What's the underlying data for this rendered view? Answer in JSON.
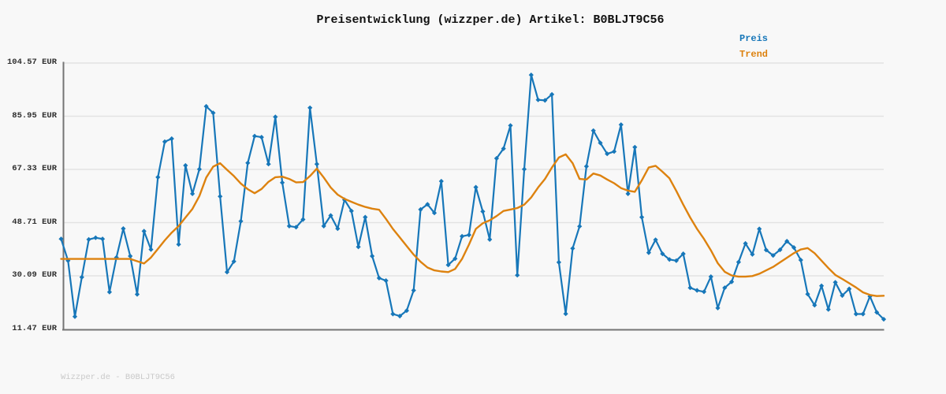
{
  "header": {
    "title": "Preisentwicklung (wizzper.de) Artikel: B0BLJT9C56"
  },
  "legend": {
    "items": [
      {
        "label": "Preis",
        "color": "#1777b9"
      },
      {
        "label": "Trend",
        "color": "#dd820f"
      }
    ]
  },
  "footer": {
    "text": "Wizzper.de - B0BLJT9C56"
  },
  "colors": {
    "background": "#f8f8f8",
    "grid": "#e3e3e3",
    "spine": "#757575",
    "preis_line": "#1777b9",
    "trend_line": "#dd820f",
    "title_text": "#111111",
    "tick_text": "#2e2e2e",
    "watermark_text": "#c9c9c9"
  },
  "chart_data": {
    "type": "line",
    "title": "Preisentwicklung (wizzper.de) Artikel: B0BLJT9C56",
    "unit": "EUR",
    "grid": true,
    "legend_position": "top-right",
    "x_axis": {
      "labels_visible": false,
      "point_count": 120
    },
    "y_ticks": [
      104.57,
      85.95,
      67.33,
      48.71,
      30.09,
      11.47
    ],
    "y_tick_labels": [
      "104.57 EUR",
      "85.95 EUR",
      "67.33 EUR",
      "48.71 EUR",
      "30.09 EUR",
      "11.47 EUR"
    ],
    "ylim": [
      11.47,
      104.57
    ],
    "series": [
      {
        "name": "Preis",
        "color": "#1777b9",
        "marker": "diamond",
        "values": [
          43.0,
          35.4,
          15.8,
          29.6,
          42.8,
          43.4,
          43.0,
          24.4,
          36.5,
          46.6,
          37.0,
          23.6,
          45.7,
          39.3,
          64.6,
          77.0,
          78.1,
          41.1,
          68.7,
          58.8,
          67.4,
          89.4,
          87.1,
          57.9,
          31.4,
          35.1,
          49.2,
          69.6,
          79.0,
          78.6,
          69.2,
          85.7,
          62.7,
          47.5,
          47.1,
          49.8,
          88.9,
          69.2,
          47.5,
          51.2,
          46.6,
          56.7,
          52.8,
          40.2,
          50.6,
          37.0,
          29.3,
          28.4,
          16.7,
          16.0,
          17.9,
          25.0,
          53.3,
          55.1,
          52.1,
          63.2,
          33.9,
          36.1,
          43.9,
          44.4,
          61.1,
          52.6,
          42.8,
          71.2,
          74.6,
          82.7,
          30.3,
          67.4,
          100.4,
          91.7,
          91.5,
          93.6,
          34.8,
          16.8,
          39.7,
          47.4,
          68.4,
          80.9,
          76.6,
          72.8,
          73.6,
          83.0,
          58.8,
          75.1,
          50.6,
          38.2,
          42.7,
          37.8,
          35.8,
          35.4,
          37.8,
          25.9,
          25.0,
          24.5,
          29.8,
          18.8,
          25.9,
          28.0,
          34.9,
          41.4,
          37.6,
          46.5,
          39.1,
          37.2,
          39.2,
          42.2,
          40.0,
          35.6,
          23.7,
          19.8,
          26.6,
          18.3,
          27.8,
          23.2,
          25.5,
          16.7,
          16.7,
          22.9,
          17.3,
          14.9
        ]
      },
      {
        "name": "Trend",
        "color": "#dd820f",
        "marker": "none",
        "values": [
          36.0,
          36.0,
          36.0,
          36.0,
          36.0,
          36.0,
          36.0,
          36.0,
          36.0,
          36.0,
          36.0,
          35.2,
          34.4,
          36.5,
          39.5,
          42.5,
          45.2,
          47.5,
          50.5,
          53.5,
          58.0,
          64.5,
          68.3,
          69.5,
          67.2,
          65.0,
          62.4,
          60.4,
          59.0,
          60.5,
          63.0,
          64.6,
          64.8,
          64.0,
          62.8,
          62.9,
          65.0,
          67.6,
          64.5,
          61.0,
          58.5,
          57.0,
          56.0,
          55.0,
          54.2,
          53.6,
          53.2,
          50.0,
          46.5,
          43.5,
          40.5,
          37.5,
          35.0,
          33.0,
          32.0,
          31.6,
          31.4,
          32.5,
          36.0,
          41.0,
          46.5,
          48.5,
          49.5,
          51.0,
          52.8,
          53.3,
          53.8,
          55.0,
          57.5,
          61.0,
          64.0,
          68.0,
          71.5,
          72.6,
          69.5,
          64.0,
          63.8,
          65.9,
          65.2,
          63.8,
          62.5,
          60.8,
          59.9,
          59.5,
          63.5,
          68.0,
          68.6,
          66.5,
          64.2,
          59.8,
          55.0,
          50.5,
          46.5,
          43.0,
          39.0,
          34.5,
          31.5,
          30.2,
          29.8,
          29.8,
          30.0,
          30.8,
          32.0,
          33.2,
          34.8,
          36.4,
          38.0,
          39.3,
          39.8,
          38.0,
          35.4,
          32.8,
          30.4,
          29.0,
          27.5,
          26.0,
          24.3,
          23.4,
          23.0,
          23.1
        ]
      }
    ]
  }
}
